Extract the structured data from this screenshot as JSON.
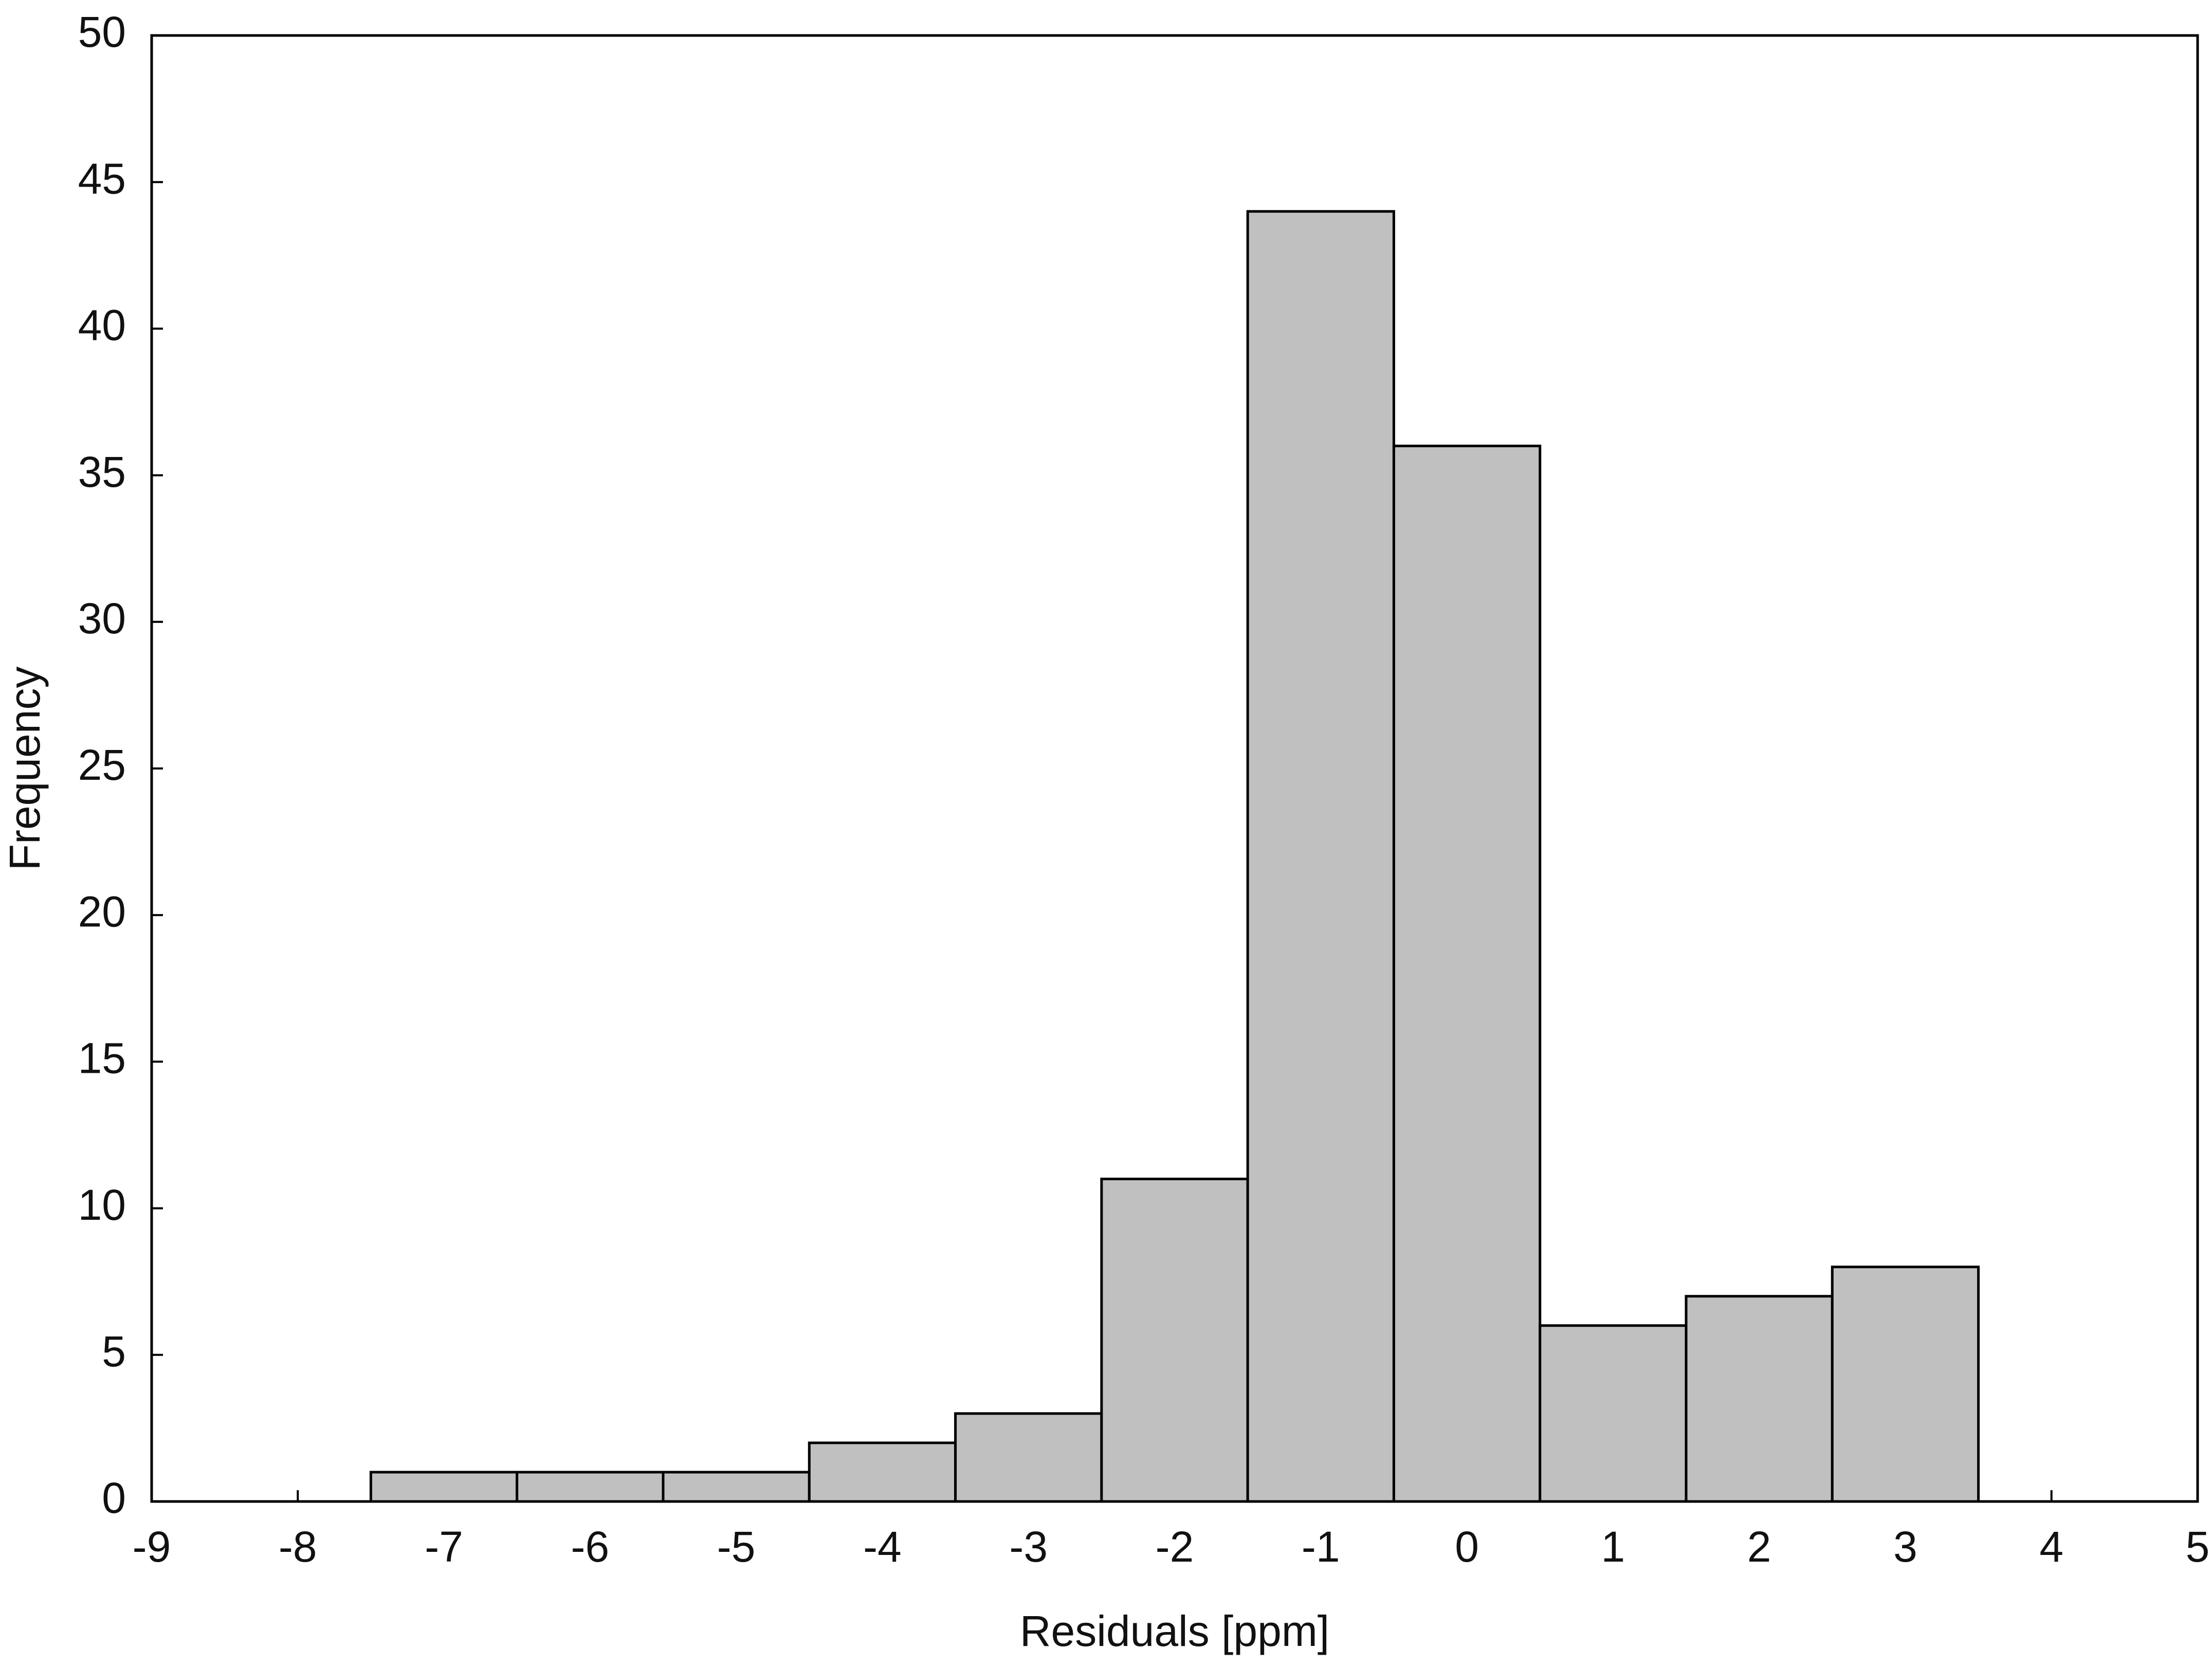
{
  "chart_data": {
    "type": "histogram",
    "x_label": "Residuals [ppm]",
    "y_label": "Frequency",
    "bins": [
      -7.5,
      -6.5,
      -5.5,
      -4.5,
      -3.5,
      -2.5,
      -1.5,
      -0.5,
      0.5,
      1.5,
      2.5,
      3.5
    ],
    "values": [
      1,
      1,
      1,
      2,
      3,
      11,
      44,
      36,
      6,
      7,
      8
    ],
    "color": "#c0c0c0",
    "xlim": [
      -9,
      5
    ],
    "xticks": [
      -9,
      -8,
      -7,
      -6,
      -5,
      -4,
      -3,
      -2,
      -1,
      0,
      1,
      2,
      3,
      4,
      5
    ],
    "ylim": [
      0,
      50
    ],
    "yticks": [
      0,
      5,
      10,
      15,
      20,
      25,
      30,
      35,
      40,
      45,
      50
    ]
  }
}
